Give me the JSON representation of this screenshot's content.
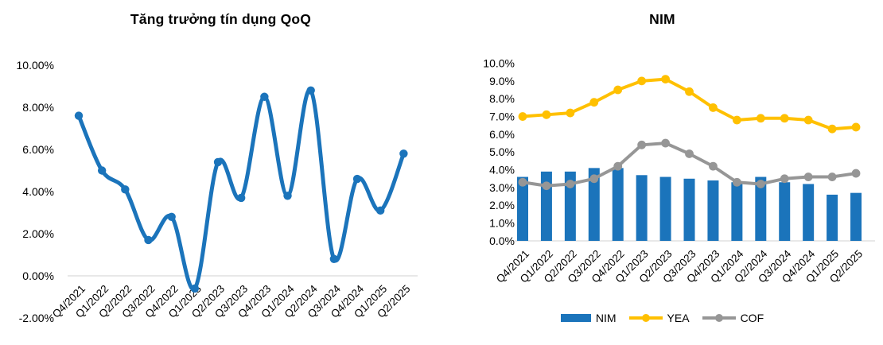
{
  "charts": {
    "left_title": "Tăng trưởng tín dụng QoQ",
    "right_title": "NIM"
  },
  "chart_data": [
    {
      "type": "line",
      "title": "Tăng trưởng tín dụng QoQ",
      "categories": [
        "Q4/2021",
        "Q1/2022",
        "Q2/2022",
        "Q3/2022",
        "Q4/2022",
        "Q1/2023",
        "Q2/2023",
        "Q3/2023",
        "Q4/2023",
        "Q1/2024",
        "Q2/2024",
        "Q3/2024",
        "Q4/2024",
        "Q1/2025",
        "Q2/2025"
      ],
      "series": [
        {
          "name": "Tăng trưởng tín dụng QoQ",
          "kind": "line",
          "smooth": true,
          "color": "#1B74BB",
          "values": [
            7.6,
            5.0,
            4.1,
            1.7,
            2.8,
            -0.6,
            5.4,
            3.7,
            8.5,
            3.8,
            8.8,
            0.8,
            4.6,
            3.1,
            5.8
          ]
        }
      ],
      "ylim": [
        -2,
        10
      ],
      "y_ticks": {
        "labels": [
          "10.00%",
          "8.00%",
          "6.00%",
          "4.00%",
          "2.00%",
          "0.00%",
          "-2.00%"
        ],
        "values": [
          10,
          8,
          6,
          4,
          2,
          0,
          -2
        ]
      },
      "grid": false,
      "legend_position": "none",
      "axis_line_color": "#D9D9D9"
    },
    {
      "type": "combo",
      "title": "NIM",
      "categories": [
        "Q4/2021",
        "Q1/2022",
        "Q2/2022",
        "Q3/2022",
        "Q4/2022",
        "Q1/2023",
        "Q2/2023",
        "Q3/2023",
        "Q4/2023",
        "Q1/2024",
        "Q2/2024",
        "Q3/2024",
        "Q4/2024",
        "Q1/2025",
        "Q2/2025"
      ],
      "series": [
        {
          "name": "NIM",
          "kind": "bar",
          "color": "#1B74BB",
          "values": [
            3.6,
            3.9,
            3.9,
            4.1,
            4.1,
            3.7,
            3.6,
            3.5,
            3.4,
            3.3,
            3.6,
            3.3,
            3.2,
            2.6,
            2.7
          ]
        },
        {
          "name": "YEA",
          "kind": "line",
          "smooth": false,
          "color": "#FFC000",
          "values": [
            7.0,
            7.1,
            7.2,
            7.8,
            8.5,
            9.0,
            9.1,
            8.4,
            7.5,
            6.8,
            6.9,
            6.9,
            6.8,
            6.3,
            6.4
          ]
        },
        {
          "name": "COF",
          "kind": "line",
          "smooth": false,
          "color": "#969696",
          "values": [
            3.3,
            3.1,
            3.2,
            3.5,
            4.2,
            5.4,
            5.5,
            4.9,
            4.2,
            3.3,
            3.2,
            3.5,
            3.6,
            3.6,
            3.8
          ]
        }
      ],
      "ylim": [
        0,
        10
      ],
      "y_ticks": {
        "labels": [
          "10.0%",
          "9.0%",
          "8.0%",
          "7.0%",
          "6.0%",
          "5.0%",
          "4.0%",
          "3.0%",
          "2.0%",
          "1.0%",
          "0.0%"
        ],
        "values": [
          10,
          9,
          8,
          7,
          6,
          5,
          4,
          3,
          2,
          1,
          0
        ]
      },
      "grid": false,
      "legend_position": "bottom",
      "axis_line_color": "#D9D9D9"
    }
  ]
}
